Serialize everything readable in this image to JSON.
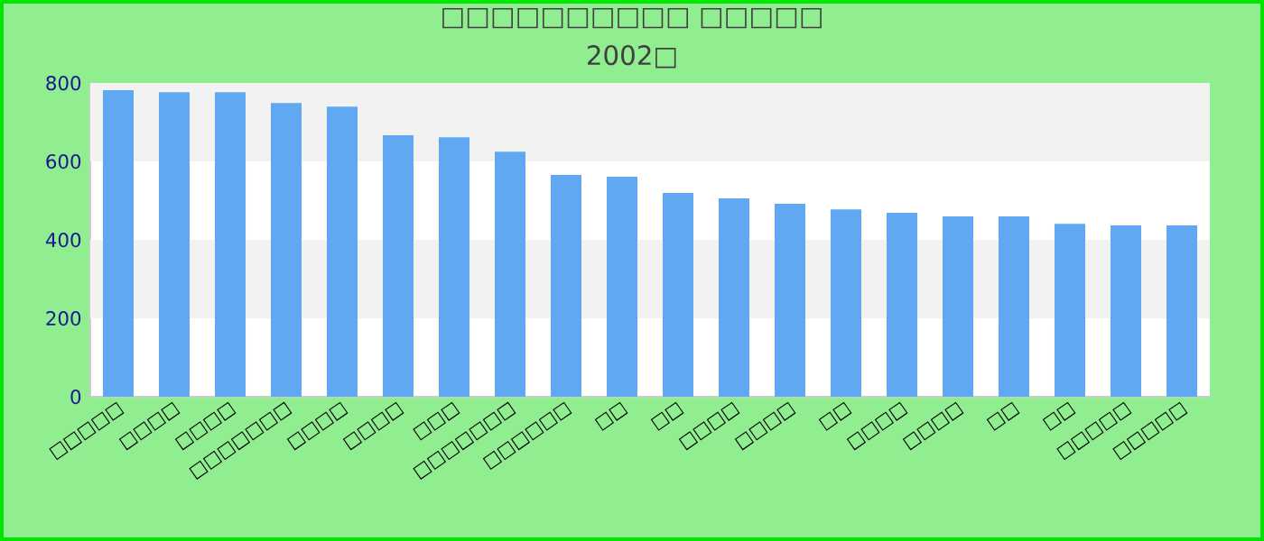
{
  "chart_data": {
    "type": "bar",
    "title": "□□□□□□□□□□ □□□□□",
    "subtitle": "2002□",
    "categories": [
      "□□□□□",
      "□□□□",
      "□□□□",
      "□□□□□□□",
      "□□□□",
      "□□□□",
      "□□□",
      "□□□□□□□",
      "□□□□□□",
      "□□",
      "□□",
      "□□□□",
      "□□□□",
      "□□",
      "□□□□",
      "□□□□",
      "□□",
      "□□",
      "□□□□□",
      "□□□□□"
    ],
    "values": [
      782,
      777,
      777,
      749,
      740,
      667,
      662,
      625,
      566,
      561,
      520,
      506,
      492,
      478,
      469,
      460,
      460,
      441,
      437,
      437
    ],
    "color": "#60a8f2",
    "ylim": [
      0,
      800
    ],
    "yticks": [
      0,
      200,
      400,
      600,
      800
    ]
  }
}
